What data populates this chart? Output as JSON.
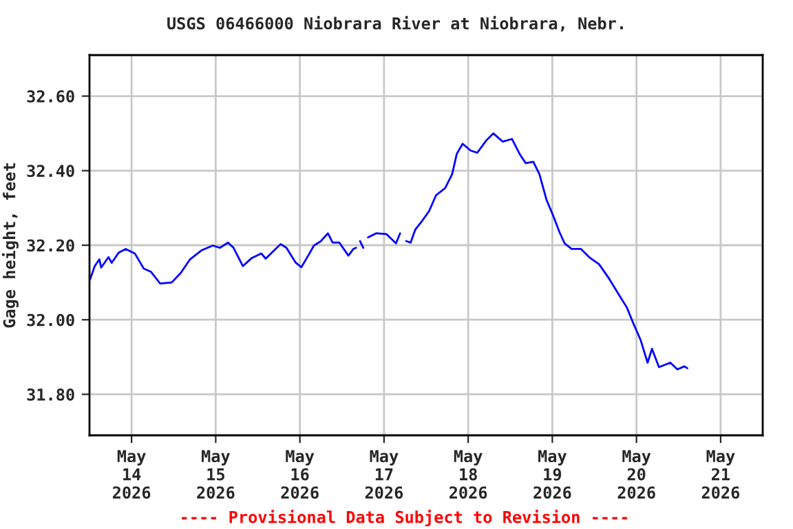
{
  "chart_data": {
    "type": "line",
    "title": "USGS 06466000 Niobrara River at Niobrara, Nebr.",
    "ylabel": "Gage height, feet",
    "annotations": [
      "---- Provisional Data Subject to Revision ----"
    ],
    "x": [
      "2026-05-13T12:10",
      "2026-05-13T13:30",
      "2026-05-13T14:50",
      "2026-05-13T15:20",
      "2026-05-13T17:25",
      "2026-05-13T18:20",
      "2026-05-13T20:20",
      "2026-05-13T22:20",
      "2026-05-14T00:55",
      "2026-05-14T03:30",
      "2026-05-14T05:30",
      "2026-05-14T08:10",
      "2026-05-14T11:25",
      "2026-05-14T14:00",
      "2026-05-14T16:40",
      "2026-05-14T19:55",
      "2026-05-14T23:10",
      "2026-05-15T01:10",
      "2026-05-15T03:30",
      "2026-05-15T05:05",
      "2026-05-15T07:45",
      "2026-05-15T10:20",
      "2026-05-15T13:00",
      "2026-05-15T14:15",
      "2026-05-15T18:30",
      "2026-05-15T20:10",
      "2026-05-15T22:50",
      "2026-05-16T00:25",
      "2026-05-16T02:45",
      "2026-05-16T04:00",
      "2026-05-16T06:00",
      "2026-05-16T08:00",
      "2026-05-16T09:20",
      "2026-05-16T11:15",
      "2026-05-16T13:50",
      "2026-05-16T15:15",
      "2026-05-16T16:00",
      "2026-05-16T16:30",
      "2026-05-16T17:10",
      "2026-05-16T18:05",
      "2026-05-16T18:40",
      "2026-05-16T19:25",
      "2026-05-16T21:45",
      "2026-05-17T00:40",
      "2026-05-17T01:40",
      "2026-05-17T03:25",
      "2026-05-17T04:35",
      "2026-05-17T05:30",
      "2026-05-17T06:20",
      "2026-05-17T07:35",
      "2026-05-17T08:55",
      "2026-05-17T10:55",
      "2026-05-17T12:50",
      "2026-05-17T14:50",
      "2026-05-17T17:25",
      "2026-05-17T19:25",
      "2026-05-17T20:45",
      "2026-05-17T22:25",
      "2026-05-18T00:40",
      "2026-05-18T02:35",
      "2026-05-18T05:15",
      "2026-05-18T07:10",
      "2026-05-18T09:50",
      "2026-05-18T12:30",
      "2026-05-18T14:40",
      "2026-05-18T16:25",
      "2026-05-18T18:35",
      "2026-05-18T20:20",
      "2026-05-18T22:20",
      "2026-05-19T00:15",
      "2026-05-19T02:00",
      "2026-05-19T03:30",
      "2026-05-19T05:30",
      "2026-05-19T08:10",
      "2026-05-19T10:45",
      "2026-05-19T13:20",
      "2026-05-19T16:00",
      "2026-05-19T19:00",
      "2026-05-19T21:15",
      "2026-05-19T23:10",
      "2026-05-20T01:10",
      "2026-05-20T03:10",
      "2026-05-20T04:25",
      "2026-05-20T06:25",
      "2026-05-20T09:40",
      "2026-05-20T11:40",
      "2026-05-20T13:40",
      "2026-05-20T14:30"
    ],
    "series": [
      {
        "color": "#0000ff",
        "values": [
          32.108,
          32.144,
          32.162,
          32.14,
          32.168,
          32.153,
          32.18,
          32.19,
          32.178,
          32.137,
          32.129,
          32.097,
          32.1,
          32.125,
          32.162,
          32.186,
          32.199,
          32.193,
          32.207,
          32.193,
          32.144,
          32.166,
          32.178,
          32.164,
          32.203,
          32.193,
          32.153,
          32.141,
          32.178,
          32.199,
          32.211,
          32.232,
          32.207,
          32.207,
          32.172,
          32.19,
          32.193,
          null,
          32.211,
          32.193,
          null,
          32.221,
          32.232,
          32.23,
          32.221,
          32.205,
          32.232,
          null,
          32.211,
          32.207,
          32.242,
          32.266,
          32.291,
          32.334,
          32.353,
          32.39,
          32.445,
          32.472,
          32.454,
          32.448,
          32.482,
          32.5,
          32.478,
          32.485,
          32.445,
          32.42,
          32.424,
          32.39,
          32.322,
          32.279,
          32.236,
          32.205,
          32.19,
          32.19,
          32.166,
          32.149,
          32.113,
          32.067,
          32.033,
          31.989,
          31.946,
          31.885,
          31.922,
          31.873,
          31.885,
          31.867,
          31.875,
          31.87
        ]
      }
    ],
    "xlim": [
      "2026-05-13T12:00",
      "2026-05-21T12:00"
    ],
    "xticks": [
      {
        "value": "2026-05-14",
        "label": "May\n14\n2026"
      },
      {
        "value": "2026-05-15",
        "label": "May\n15\n2026"
      },
      {
        "value": "2026-05-16",
        "label": "May\n16\n2026"
      },
      {
        "value": "2026-05-17",
        "label": "May\n17\n2026"
      },
      {
        "value": "2026-05-18",
        "label": "May\n18\n2026"
      },
      {
        "value": "2026-05-19",
        "label": "May\n19\n2026"
      },
      {
        "value": "2026-05-20",
        "label": "May\n20\n2026"
      },
      {
        "value": "2026-05-21",
        "label": "May\n21\n2026"
      }
    ],
    "ylim": [
      31.69,
      32.71
    ],
    "yticks": [
      {
        "value": 31.8,
        "label": "31.80"
      },
      {
        "value": 32.0,
        "label": "32.00"
      },
      {
        "value": 32.2,
        "label": "32.20"
      },
      {
        "value": 32.4,
        "label": "32.40"
      },
      {
        "value": 32.6,
        "label": "32.60"
      }
    ],
    "grid": true,
    "legend": false,
    "marker": "none",
    "line_style": "solid"
  }
}
